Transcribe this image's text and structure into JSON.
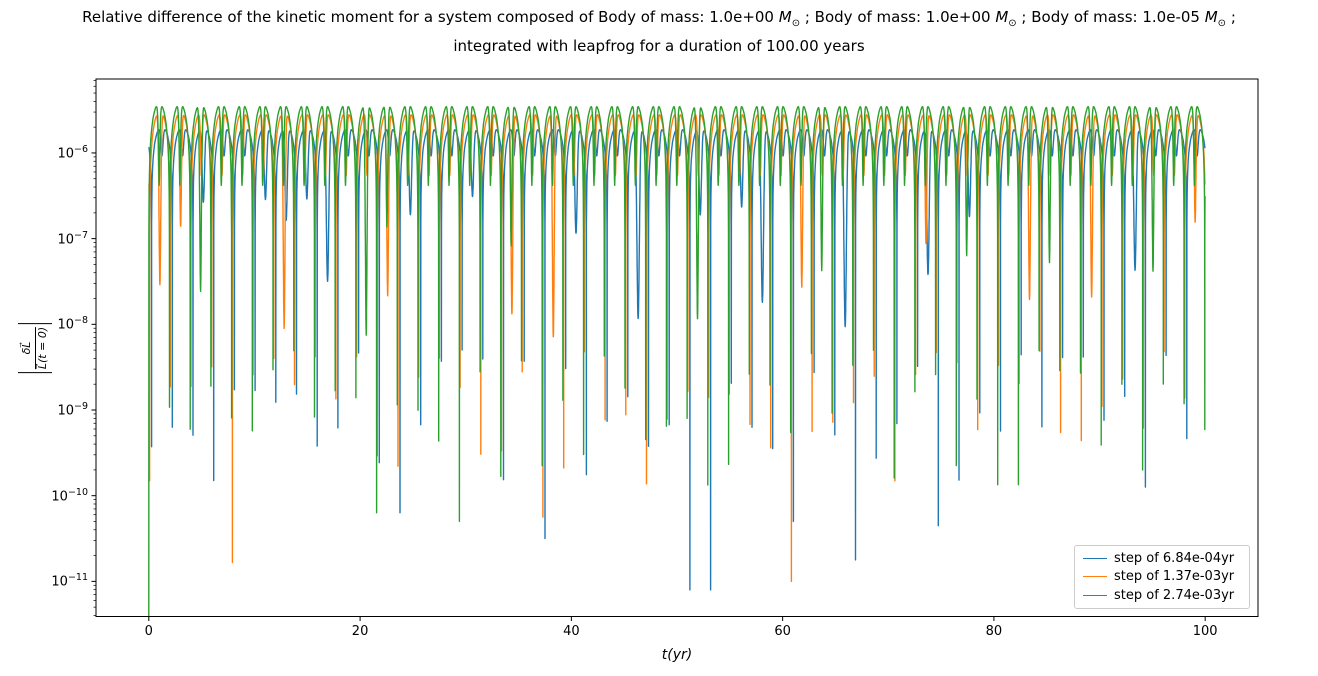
{
  "title": {
    "line1": "Relative difference of the kinetic moment for a system composed of Body of mass: 1.0e+00 M⊙ ; Body of mass: 1.0e+00 M⊙ ; Body of mass: 1.0e-05 M⊙ ;",
    "line2": "integrated with leapfrog for a duration of 100.00 years"
  },
  "chart_data": {
    "type": "line",
    "title": "Relative difference of the kinetic moment for a system composed of Body of mass: 1.0e+00 M⊙ ; Body of mass: 1.0e+00 M⊙ ; Body of mass: 1.0e-05 M⊙ ; integrated with leapfrog for a duration of 100.00 years",
    "xlabel": "t(yr)",
    "ylabel": "|δL⃗ / L⃗(t = 0)|",
    "ylabel_numerator": "δL⃗",
    "ylabel_denominator": "L⃗(t = 0)",
    "x_axis": {
      "lim": [
        -5,
        105
      ],
      "ticks": [
        0,
        20,
        40,
        60,
        80,
        100
      ],
      "duration_yr": 100
    },
    "y_axis": {
      "scale": "log",
      "lim_log10": [
        -11.41,
        -5.137
      ],
      "tick_exponents": [
        -6,
        -7,
        -8,
        -9,
        -10,
        -11
      ],
      "minor_ticks": "log multiples 2-9 per decade"
    },
    "grid": false,
    "legend_location": "lower right",
    "integrator": "leapfrog",
    "series": [
      {
        "label": "step of 6.84e-04yr",
        "color": "#1f77b4",
        "step_yr": 0.000684,
        "peak_amplitude": 2.05e-06,
        "period_yr": 1.96,
        "phase_yr": 0.26,
        "arch_exponent": 0.6,
        "notch_depth": 0.55,
        "notch_sigma": 0.06,
        "seed": 101
      },
      {
        "label": "step of 1.37e-03yr",
        "color": "#ff7f0e",
        "step_yr": 0.00137,
        "peak_amplitude": 3.05e-06,
        "period_yr": 1.96,
        "phase_yr": 0.07,
        "arch_exponent": 0.8,
        "notch_depth": 0.82,
        "notch_sigma": 0.048,
        "seed": 202
      },
      {
        "label": "step of 2.74e-03yr",
        "color": "#2ca02c",
        "step_yr": 0.00274,
        "peak_amplitude": 3.8e-06,
        "period_yr": 1.96,
        "phase_yr": 0.0,
        "arch_exponent": 0.8,
        "notch_depth": 0.89,
        "notch_sigma": 0.048,
        "seed": 303
      }
    ],
    "spike_floor_log10_range": [
      -9.9,
      -8.3
    ],
    "notch_deepen_probability": 0.3,
    "notch_deepen_log10_max": 2.2,
    "special_spikes": [
      {
        "series": 2,
        "t": 0.0,
        "log10_depth": -11.42
      },
      {
        "series": 1,
        "t": 7.2,
        "log10_depth": -10.78
      },
      {
        "series": 2,
        "t": 21.6,
        "log10_depth": -10.2
      },
      {
        "series": 0,
        "t": 24.1,
        "log10_depth": -10.2
      },
      {
        "series": 2,
        "t": 30.1,
        "log10_depth": -10.3
      },
      {
        "series": 1,
        "t": 38.1,
        "log10_depth": -10.25
      },
      {
        "series": 0,
        "t": 38.1,
        "log10_depth": -10.5
      },
      {
        "series": 0,
        "t": 52.2,
        "log10_depth": -11.1
      },
      {
        "series": 1,
        "t": 61.4,
        "log10_depth": -11.0
      },
      {
        "series": 0,
        "t": 61.6,
        "log10_depth": -10.3
      },
      {
        "series": 0,
        "t": 66.2,
        "log10_depth": -10.75
      },
      {
        "series": 0,
        "t": 75.1,
        "log10_depth": -10.35
      },
      {
        "series": 2,
        "t": 93.8,
        "log10_depth": -9.7
      },
      {
        "series": 0,
        "t": 94.3,
        "log10_depth": -9.9
      }
    ]
  }
}
